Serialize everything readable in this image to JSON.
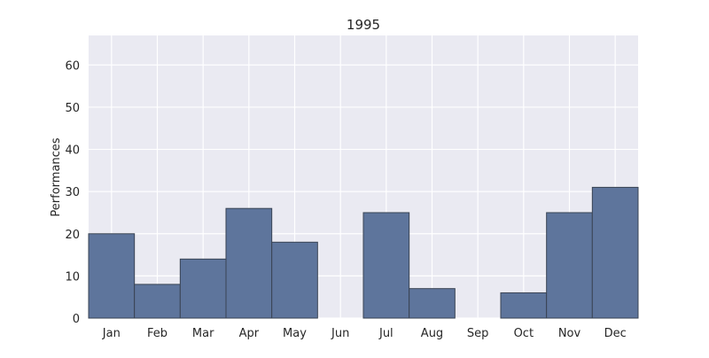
{
  "chart_data": {
    "type": "bar",
    "title": "1995",
    "xlabel": "",
    "ylabel": "Performances",
    "categories": [
      "Jan",
      "Feb",
      "Mar",
      "Apr",
      "May",
      "Jun",
      "Jul",
      "Aug",
      "Sep",
      "Oct",
      "Nov",
      "Dec"
    ],
    "values": [
      20,
      8,
      14,
      26,
      18,
      0,
      25,
      7,
      0,
      6,
      25,
      31
    ],
    "ylim": [
      0,
      67
    ],
    "yticks": [
      0,
      10,
      20,
      30,
      40,
      50,
      60
    ],
    "ytick_labels": [
      "0",
      "10",
      "20",
      "30",
      "40",
      "50",
      "60"
    ],
    "grid": true,
    "colors": {
      "bar": "#5e759c",
      "bar_edge": "#3a4454",
      "plot_background": "#eaeaf2",
      "grid": "#ffffff"
    }
  }
}
